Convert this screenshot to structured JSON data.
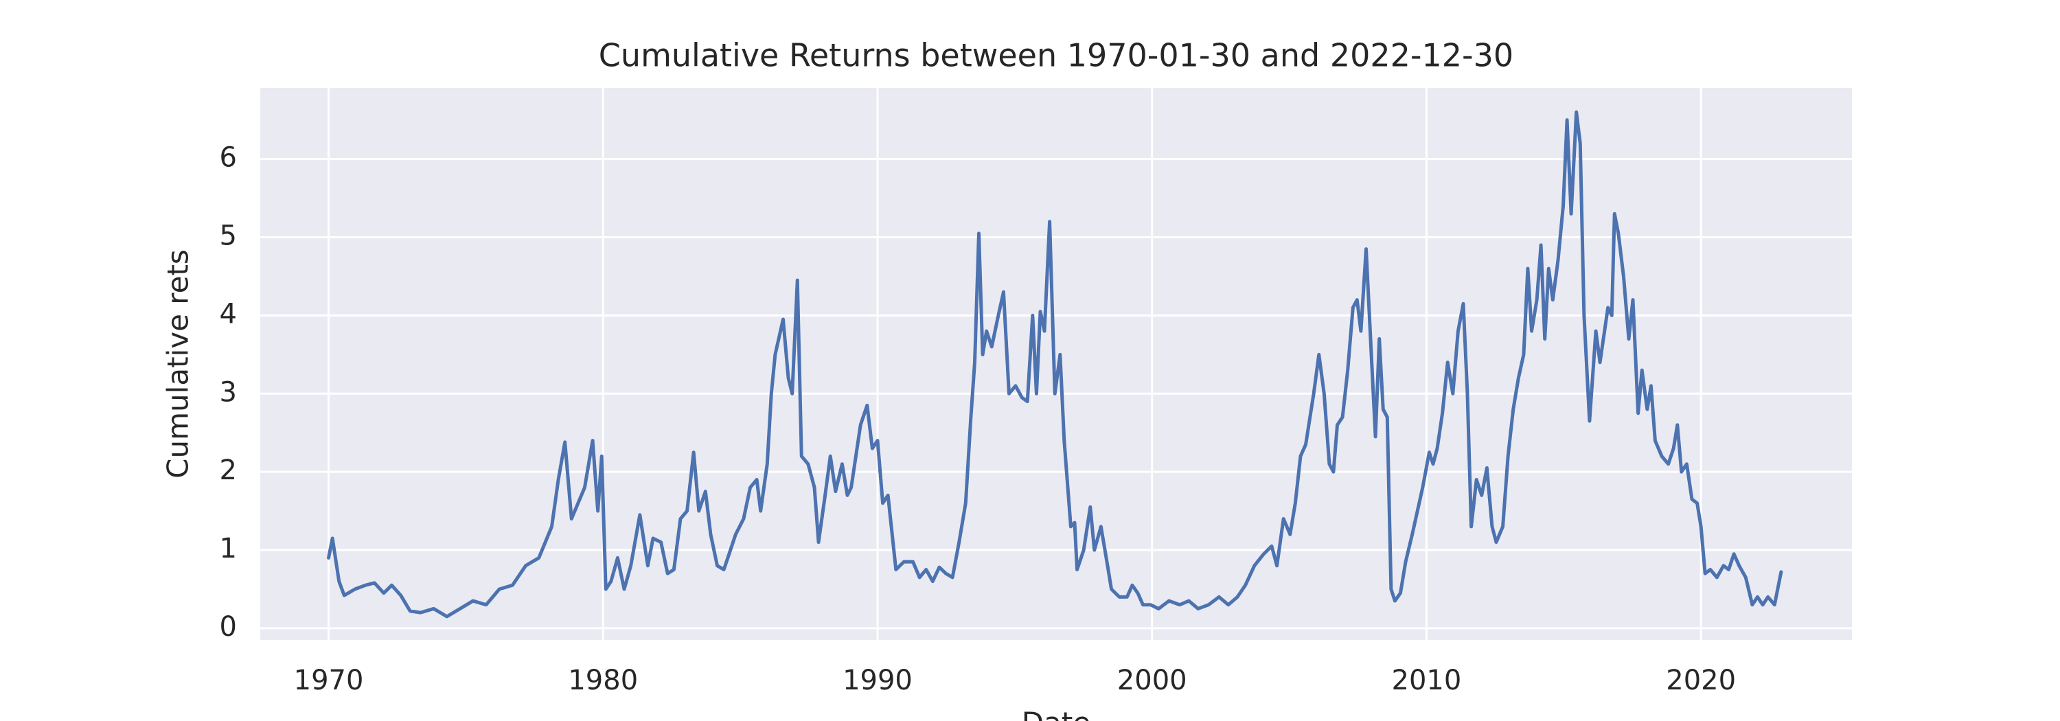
{
  "chart_data": {
    "type": "line",
    "title": "Cumulative Returns between 1970-01-30 and 2022-12-30",
    "xlabel": "Date",
    "ylabel": "Cumulative rets",
    "color": "#4c72b0",
    "grid": true,
    "xlim": [
      1967.51,
      2025.5
    ],
    "ylim": [
      -0.15,
      6.91
    ],
    "xticks": [
      1970,
      1980,
      1990,
      2000,
      2010,
      2020
    ],
    "yticks": [
      0,
      1,
      2,
      3,
      4,
      5,
      6
    ],
    "x": [
      1970.0,
      1970.14,
      1970.38,
      1970.57,
      1970.96,
      1971.34,
      1971.67,
      1972.01,
      1972.3,
      1972.63,
      1972.97,
      1973.35,
      1973.83,
      1974.31,
      1974.79,
      1975.26,
      1975.74,
      1976.22,
      1976.7,
      1977.18,
      1977.66,
      1978.13,
      1978.37,
      1978.61,
      1978.85,
      1979.09,
      1979.33,
      1979.62,
      1979.81,
      1979.95,
      1980.1,
      1980.29,
      1980.53,
      1980.77,
      1981.01,
      1981.34,
      1981.63,
      1981.82,
      1982.11,
      1982.35,
      1982.58,
      1982.82,
      1983.06,
      1983.3,
      1983.49,
      1983.73,
      1983.92,
      1984.16,
      1984.4,
      1984.64,
      1984.83,
      1985.12,
      1985.36,
      1985.6,
      1985.74,
      1985.98,
      1986.13,
      1986.27,
      1986.56,
      1986.75,
      1986.89,
      1987.08,
      1987.23,
      1987.47,
      1987.7,
      1987.85,
      1988.09,
      1988.28,
      1988.47,
      1988.71,
      1988.9,
      1989.04,
      1989.38,
      1989.62,
      1989.81,
      1990.0,
      1990.19,
      1990.38,
      1990.67,
      1990.96,
      1991.29,
      1991.53,
      1991.77,
      1992.01,
      1992.25,
      1992.49,
      1992.73,
      1992.97,
      1993.21,
      1993.4,
      1993.54,
      1993.69,
      1993.83,
      1993.97,
      1994.16,
      1994.4,
      1994.59,
      1994.79,
      1995.03,
      1995.26,
      1995.46,
      1995.65,
      1995.79,
      1995.93,
      1996.08,
      1996.27,
      1996.46,
      1996.65,
      1996.8,
      1997.04,
      1997.18,
      1997.27,
      1997.51,
      1997.75,
      1997.9,
      1998.14,
      1998.38,
      1998.52,
      1998.81,
      1999.09,
      1999.28,
      1999.48,
      1999.67,
      1999.95,
      2000.24,
      2000.62,
      2001.01,
      2001.34,
      2001.68,
      2002.06,
      2002.44,
      2002.78,
      2003.11,
      2003.4,
      2003.73,
      2004.07,
      2004.36,
      2004.55,
      2004.79,
      2005.03,
      2005.22,
      2005.41,
      2005.6,
      2005.89,
      2006.08,
      2006.27,
      2006.46,
      2006.61,
      2006.75,
      2006.94,
      2007.13,
      2007.32,
      2007.47,
      2007.61,
      2007.8,
      2007.99,
      2008.14,
      2008.28,
      2008.42,
      2008.57,
      2008.71,
      2008.85,
      2009.05,
      2009.24,
      2009.48,
      2009.67,
      2009.86,
      2010.1,
      2010.24,
      2010.39,
      2010.58,
      2010.77,
      2010.96,
      2011.15,
      2011.34,
      2011.49,
      2011.63,
      2011.82,
      2012.01,
      2012.2,
      2012.39,
      2012.54,
      2012.78,
      2012.97,
      2013.16,
      2013.35,
      2013.54,
      2013.69,
      2013.83,
      2014.02,
      2014.17,
      2014.31,
      2014.45,
      2014.6,
      2014.79,
      2014.98,
      2015.12,
      2015.27,
      2015.46,
      2015.6,
      2015.74,
      2015.94,
      2016.17,
      2016.32,
      2016.61,
      2016.75,
      2016.85,
      2016.99,
      2017.18,
      2017.37,
      2017.52,
      2017.71,
      2017.85,
      2018.04,
      2018.18,
      2018.33,
      2018.57,
      2018.81,
      2019.0,
      2019.14,
      2019.29,
      2019.48,
      2019.67,
      2019.86,
      2020.0,
      2020.15,
      2020.34,
      2020.58,
      2020.82,
      2021.01,
      2021.2,
      2021.39,
      2021.63,
      2021.87,
      2022.06,
      2022.25,
      2022.44,
      2022.68,
      2022.92
    ],
    "values": [
      0.9,
      1.15,
      0.6,
      0.42,
      0.5,
      0.55,
      0.58,
      0.45,
      0.55,
      0.42,
      0.22,
      0.2,
      0.25,
      0.15,
      0.25,
      0.35,
      0.3,
      0.5,
      0.55,
      0.8,
      0.9,
      1.3,
      1.9,
      2.38,
      1.4,
      1.6,
      1.8,
      2.4,
      1.5,
      2.2,
      0.5,
      0.6,
      0.9,
      0.5,
      0.8,
      1.45,
      0.8,
      1.15,
      1.1,
      0.7,
      0.75,
      1.4,
      1.5,
      2.25,
      1.5,
      1.75,
      1.2,
      0.8,
      0.75,
      1.0,
      1.2,
      1.4,
      1.8,
      1.9,
      1.5,
      2.1,
      3.0,
      3.5,
      3.95,
      3.2,
      3.0,
      4.45,
      2.2,
      2.1,
      1.8,
      1.1,
      1.7,
      2.2,
      1.75,
      2.1,
      1.7,
      1.8,
      2.6,
      2.85,
      2.3,
      2.4,
      1.6,
      1.7,
      0.75,
      0.85,
      0.85,
      0.65,
      0.75,
      0.6,
      0.78,
      0.7,
      0.65,
      1.1,
      1.6,
      2.7,
      3.4,
      5.05,
      3.5,
      3.8,
      3.6,
      4.0,
      4.3,
      3.0,
      3.1,
      2.95,
      2.9,
      4.0,
      3.0,
      4.05,
      3.8,
      5.2,
      3.0,
      3.5,
      2.4,
      1.3,
      1.35,
      0.75,
      1.0,
      1.55,
      1.0,
      1.3,
      0.8,
      0.5,
      0.4,
      0.4,
      0.55,
      0.45,
      0.3,
      0.3,
      0.25,
      0.35,
      0.3,
      0.35,
      0.25,
      0.3,
      0.4,
      0.3,
      0.4,
      0.55,
      0.8,
      0.95,
      1.05,
      0.8,
      1.4,
      1.2,
      1.6,
      2.2,
      2.35,
      3.0,
      3.5,
      3.0,
      2.1,
      2.0,
      2.6,
      2.7,
      3.3,
      4.1,
      4.2,
      3.8,
      4.85,
      3.5,
      2.45,
      3.7,
      2.8,
      2.7,
      0.5,
      0.35,
      0.45,
      0.85,
      1.2,
      1.5,
      1.8,
      2.25,
      2.1,
      2.3,
      2.75,
      3.4,
      3.0,
      3.8,
      4.15,
      3.0,
      1.3,
      1.9,
      1.7,
      2.05,
      1.3,
      1.1,
      1.3,
      2.2,
      2.8,
      3.2,
      3.5,
      4.6,
      3.8,
      4.2,
      4.9,
      3.7,
      4.6,
      4.2,
      4.7,
      5.4,
      6.5,
      5.3,
      6.6,
      6.2,
      4.0,
      2.65,
      3.8,
      3.4,
      4.1,
      4.0,
      5.3,
      5.05,
      4.5,
      3.7,
      4.2,
      2.75,
      3.3,
      2.8,
      3.1,
      2.4,
      2.2,
      2.1,
      2.3,
      2.6,
      2.0,
      2.1,
      1.65,
      1.6,
      1.3,
      0.7,
      0.75,
      0.65,
      0.8,
      0.75,
      0.95,
      0.8,
      0.65,
      0.3,
      0.4,
      0.3,
      0.4,
      0.3,
      0.72
    ]
  }
}
